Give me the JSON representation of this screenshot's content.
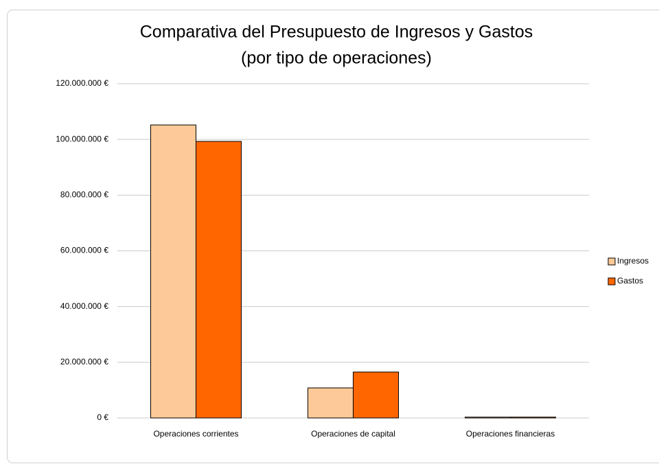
{
  "chart_data": {
    "type": "bar",
    "title": "Comparativa del Presupuesto de Ingresos y Gastos",
    "subtitle": "(por tipo de operaciones)",
    "categories": [
      "Operaciones corrientes",
      "Operaciones de capital",
      "Operaciones financieras"
    ],
    "series": [
      {
        "name": "Ingresos",
        "color": "#fdc998",
        "values": [
          105200000,
          10800000,
          300000
        ]
      },
      {
        "name": "Gastos",
        "color": "#ff6600",
        "values": [
          99300000,
          16500000,
          300000
        ]
      }
    ],
    "ylim": [
      0,
      120000000
    ],
    "yticks": [
      {
        "value": 0,
        "label": "0 €"
      },
      {
        "value": 20000000,
        "label": "20.000.000 €"
      },
      {
        "value": 40000000,
        "label": "40.000.000 €"
      },
      {
        "value": 60000000,
        "label": "60.000.000 €"
      },
      {
        "value": 80000000,
        "label": "80.000.000 €"
      },
      {
        "value": 100000000,
        "label": "100.000.000 €"
      },
      {
        "value": 120000000,
        "label": "120.000.000 €"
      }
    ],
    "grid": true,
    "legend": "right"
  }
}
